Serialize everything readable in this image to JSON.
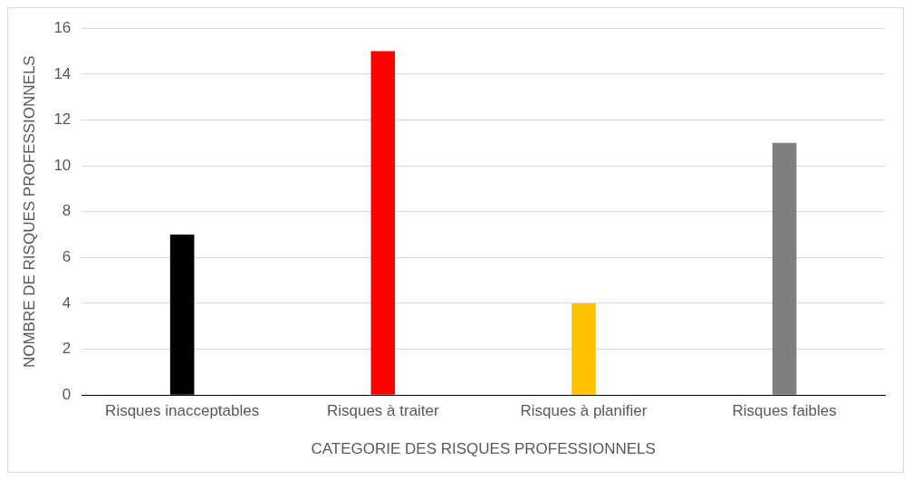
{
  "chart_data": {
    "type": "bar",
    "xlabel": "CATEGORIE DES RISQUES PROFESSIONNELS",
    "ylabel": "NOMBRE DE RISQUES PROFESSIONNELS",
    "categories": [
      "Risques inacceptables",
      "Risques à traiter",
      "Risques à planifier",
      "Risques faibles"
    ],
    "values": [
      7,
      15,
      4,
      11
    ],
    "colors": [
      "#000000",
      "#ff0000",
      "#ffc000",
      "#7f7f7f"
    ],
    "ylim": [
      0,
      16
    ],
    "yticks": [
      0,
      2,
      4,
      6,
      8,
      10,
      12,
      14,
      16
    ],
    "grid": "y",
    "legend": false
  }
}
